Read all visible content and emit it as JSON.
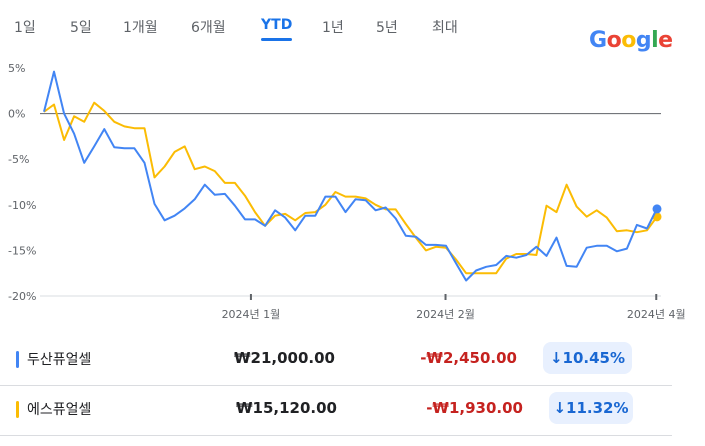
{
  "tabs": [
    "1일",
    "5일",
    "1개월",
    "6개월",
    "YTD",
    "1년",
    "5년",
    "최대"
  ],
  "active_tab": "YTD",
  "logo": {
    "letters": [
      "G",
      "o",
      "o",
      "g",
      "l",
      "e"
    ],
    "colors": [
      "#4285f4",
      "#ea4335",
      "#fbbc05",
      "#4285f4",
      "#34a853",
      "#ea4335"
    ]
  },
  "colors": {
    "series_blue": "#4285f4",
    "series_yellow": "#fbbc04",
    "badge_bg": "#e8f0fe",
    "badge_text": "#1967d2",
    "change_text": "#c5221f"
  },
  "chart_data": {
    "type": "line",
    "ylim": [
      -20,
      5
    ],
    "yticks": [
      5,
      0,
      -5,
      -10,
      -15,
      -20
    ],
    "ytick_labels": [
      "5%",
      "0%",
      "-5%",
      "-10%",
      "-15%",
      "-20%"
    ],
    "x_range": [
      0,
      65
    ],
    "xticks": [
      {
        "x": 21.8,
        "label": "2024년 1월"
      },
      {
        "x": 42.3,
        "label": "2024년 2월"
      },
      {
        "x": 64.5,
        "label": "2024년 4월"
      }
    ],
    "zero_line": true,
    "series": [
      {
        "name": "두산퓨얼셀",
        "color": "#4285f4",
        "values": [
          0.2,
          4.6,
          0.0,
          -2.2,
          -5.4,
          -3.6,
          -1.7,
          -3.7,
          -3.8,
          -3.8,
          -5.4,
          -9.9,
          -11.7,
          -11.2,
          -10.4,
          -9.4,
          -7.8,
          -8.9,
          -8.8,
          -10.1,
          -11.6,
          -11.6,
          -12.3,
          -10.6,
          -11.4,
          -12.8,
          -11.2,
          -11.2,
          -9.1,
          -9.1,
          -10.8,
          -9.4,
          -9.5,
          -10.6,
          -10.3,
          -11.5,
          -13.4,
          -13.5,
          -14.4,
          -14.4,
          -14.5,
          -16.4,
          -18.3,
          -17.2,
          -16.8,
          -16.6,
          -15.6,
          -15.8,
          -15.5,
          -14.6,
          -15.6,
          -13.6,
          -16.7,
          -16.8,
          -14.7,
          -14.5,
          -14.5,
          -15.1,
          -14.8,
          -12.2,
          -12.6,
          -10.4
        ],
        "end_value": -10.45
      },
      {
        "name": "에스퓨얼셀",
        "color": "#fbbc04",
        "values": [
          0.2,
          1.0,
          -2.9,
          -0.3,
          -0.9,
          1.2,
          0.3,
          -0.9,
          -1.4,
          -1.6,
          -1.6,
          -7.0,
          -5.8,
          -4.2,
          -3.6,
          -6.1,
          -5.8,
          -6.3,
          -7.6,
          -7.6,
          -9.0,
          -10.8,
          -12.3,
          -11.2,
          -11.0,
          -11.7,
          -10.9,
          -10.8,
          -10.0,
          -8.6,
          -9.1,
          -9.1,
          -9.3,
          -10.0,
          -10.5,
          -10.5,
          -12.1,
          -13.6,
          -15.0,
          -14.6,
          -14.7,
          -16.0,
          -17.5,
          -17.5,
          -17.5,
          -17.5,
          -15.9,
          -15.4,
          -15.4,
          -15.5,
          -10.1,
          -10.8,
          -7.8,
          -10.2,
          -11.3,
          -10.6,
          -11.4,
          -12.9,
          -12.8,
          -13.0,
          -12.8,
          -11.3
        ],
        "end_value": -11.32
      }
    ]
  },
  "rows": [
    {
      "name": "두산퓨얼셀",
      "price": "₩21,000.00",
      "change": "-₩2,450.00",
      "percent": "10.45%",
      "arrow": "↓"
    },
    {
      "name": "에스퓨얼셀",
      "price": "₩15,120.00",
      "change": "-₩1,930.00",
      "percent": "11.32%",
      "arrow": "↓"
    }
  ]
}
